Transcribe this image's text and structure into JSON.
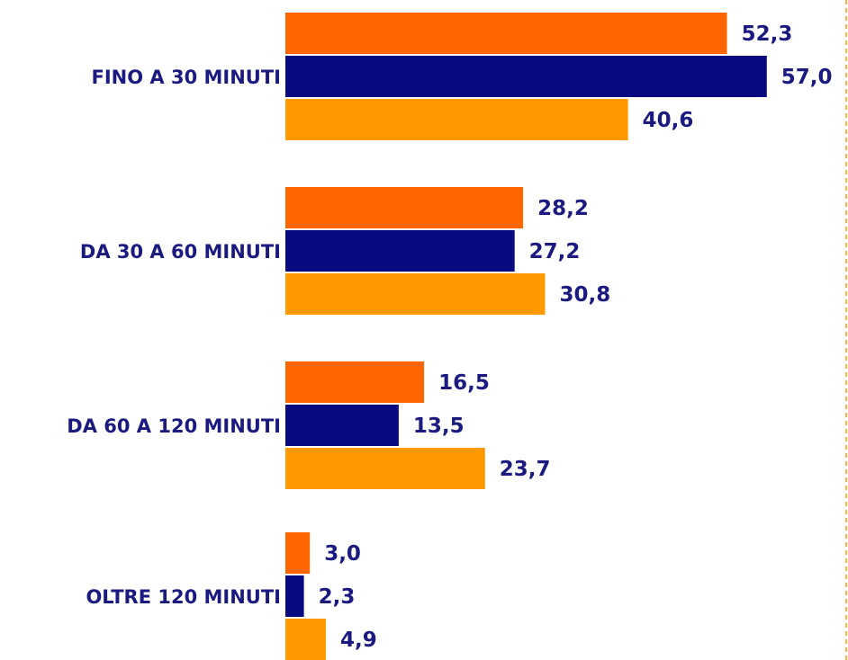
{
  "chart_data": {
    "type": "bar",
    "orientation": "horizontal",
    "categories": [
      "FINO A 30 MINUTI",
      "DA 30 A 60 MINUTI",
      "DA 60 A 120 MINUTI",
      "OLTRE 120 MINUTI"
    ],
    "series": [
      {
        "values": [
          52.3,
          28.2,
          16.5,
          3.0
        ],
        "labels": [
          "52,3",
          "28,2",
          "16,5",
          "3,0"
        ],
        "color": "#ff6600"
      },
      {
        "values": [
          57.0,
          27.2,
          13.5,
          2.3
        ],
        "labels": [
          "57,0",
          "27,2",
          "13,5",
          "2,3"
        ],
        "color": "#0a0a80"
      },
      {
        "values": [
          40.6,
          30.8,
          23.7,
          4.9
        ],
        "labels": [
          "40,6",
          "30,8",
          "23,7",
          "4,9"
        ],
        "color": "#ff9900"
      }
    ],
    "xlim": [
      0,
      57.0
    ],
    "grid": false,
    "legend": false,
    "right_border": "dashed",
    "right_border_color": "#ff9900",
    "label_color": "#1a1a80"
  }
}
